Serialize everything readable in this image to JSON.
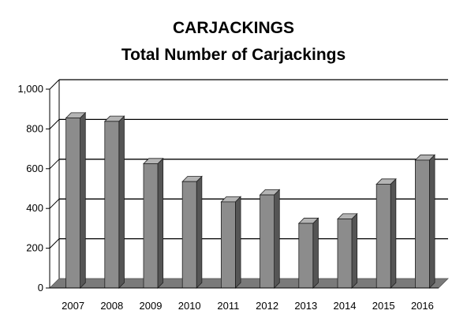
{
  "chart_data": {
    "type": "bar",
    "title": "CARJACKINGS",
    "subtitle": "Total Number of Carjackings",
    "xlabel": "",
    "ylabel": "",
    "categories": [
      "2007",
      "2008",
      "2009",
      "2010",
      "2011",
      "2012",
      "2013",
      "2014",
      "2015",
      "2016"
    ],
    "values": [
      855,
      838,
      625,
      535,
      433,
      468,
      325,
      347,
      522,
      643
    ],
    "ylim": [
      0,
      1000
    ],
    "yticks": [
      0,
      200,
      400,
      600,
      800,
      1000
    ],
    "ytick_labels": [
      "0",
      "200",
      "400",
      "600",
      "800",
      "1,000"
    ],
    "grid": true,
    "legend": "none",
    "colors": {
      "bar_front": "#8c8c8c",
      "bar_side": "#555555",
      "bar_top": "#b4b4b4",
      "floor": "#7a7a7a",
      "gridline": "#000000"
    }
  }
}
